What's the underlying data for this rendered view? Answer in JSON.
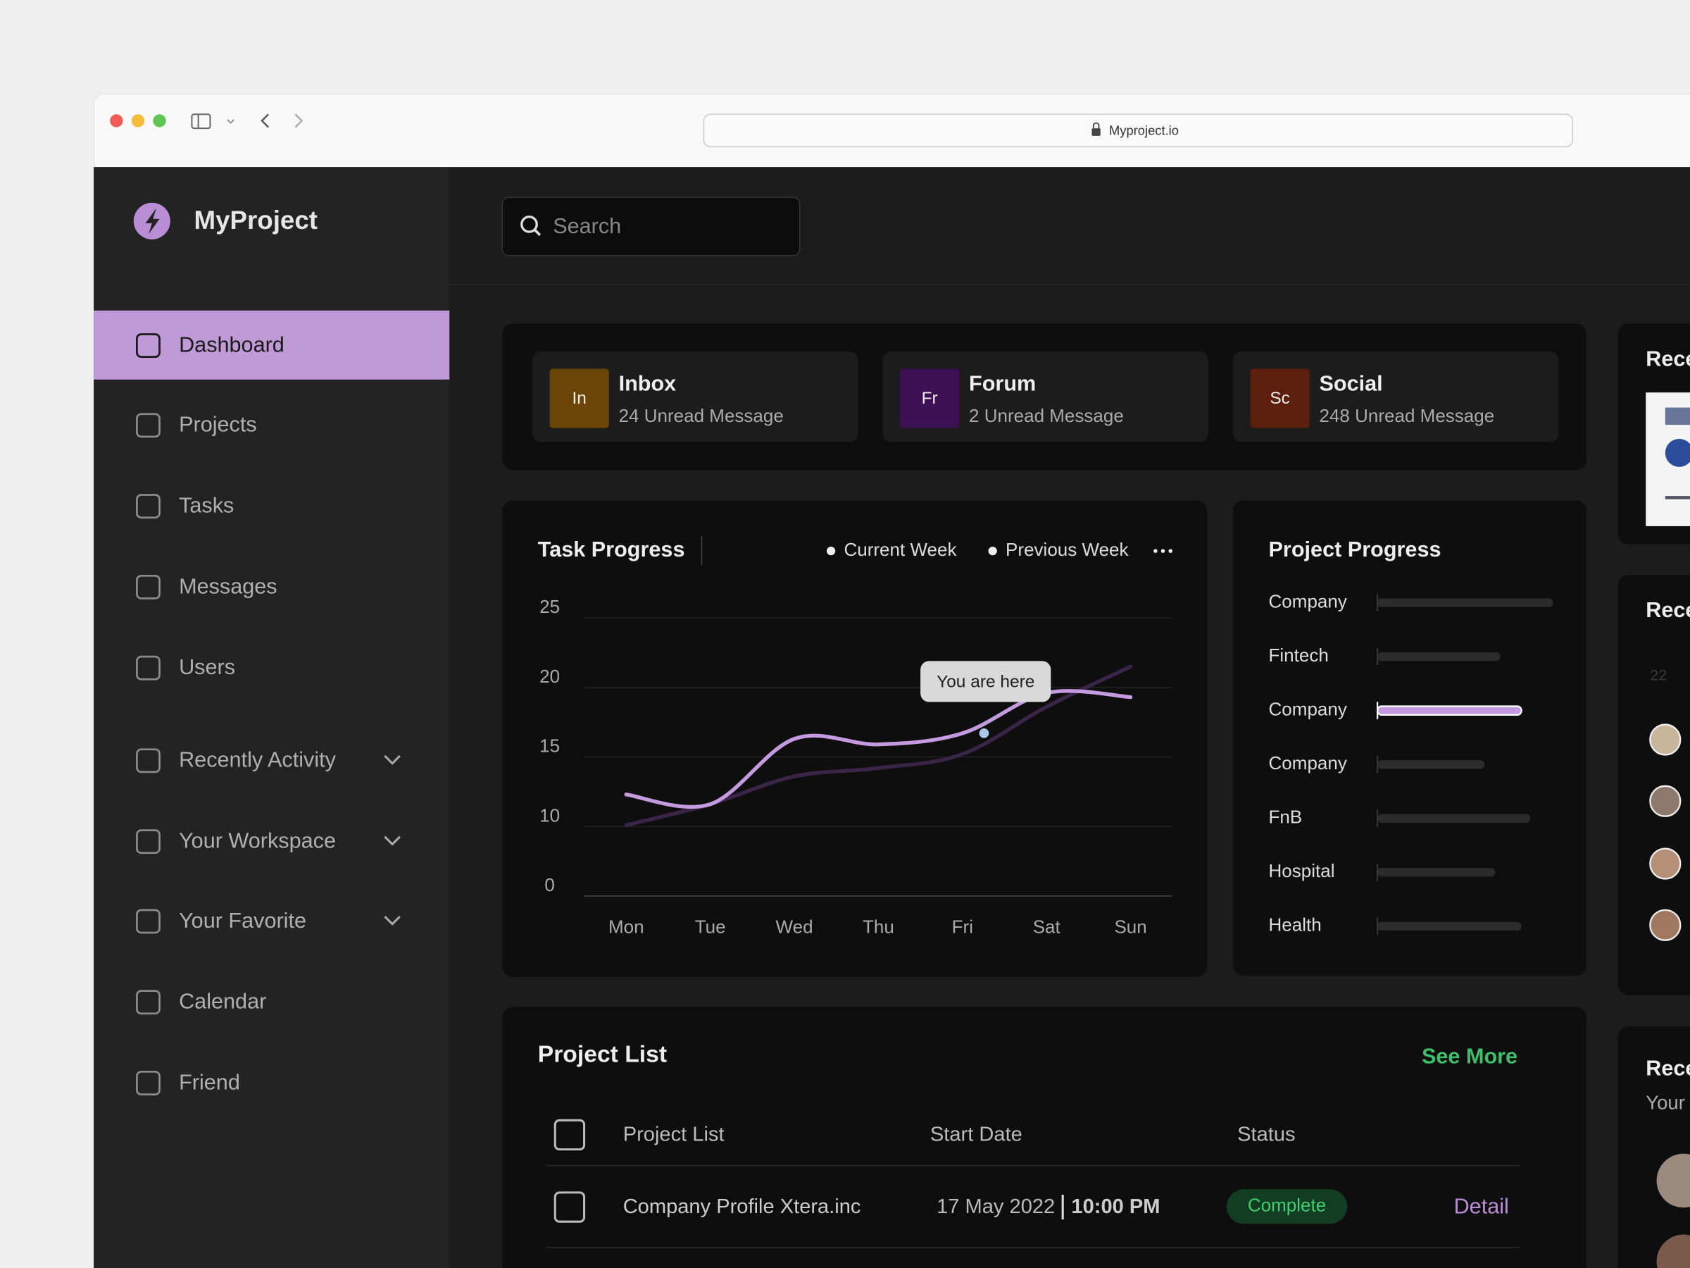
{
  "browser": {
    "url": "Myproject.io"
  },
  "sidebar": {
    "brand": "MyProject",
    "items": [
      {
        "label": "Dashboard",
        "active": true
      },
      {
        "label": "Projects"
      },
      {
        "label": "Tasks"
      },
      {
        "label": "Messages"
      },
      {
        "label": "Users"
      },
      {
        "label": "Recently Activity",
        "expandable": true
      },
      {
        "label": "Your Workspace",
        "expandable": true
      },
      {
        "label": "Your Favorite",
        "expandable": true
      },
      {
        "label": "Calendar"
      },
      {
        "label": "Friend"
      }
    ]
  },
  "search": {
    "placeholder": "Search"
  },
  "message_cards": [
    {
      "badge": "In",
      "title": "Inbox",
      "subtitle": "24 Unread Message",
      "color": "#6b4507"
    },
    {
      "badge": "Fr",
      "title": "Forum",
      "subtitle": "2 Unread Message",
      "color": "#3d0f55"
    },
    {
      "badge": "Sc",
      "title": "Social",
      "subtitle": "248 Unread Message",
      "color": "#5c1f0d"
    }
  ],
  "chart_data": [
    {
      "type": "line",
      "title": "Task Progress",
      "categories": [
        "Mon",
        "Tue",
        "Wed",
        "Thu",
        "Fri",
        "Sat",
        "Sun"
      ],
      "series": [
        {
          "name": "Current Week",
          "color": "#c59be0",
          "values": [
            12.3,
            11.6,
            16.3,
            15.9,
            16.7,
            19.6,
            19.3
          ]
        },
        {
          "name": "Previous Week",
          "color": "#3a2448",
          "values": [
            10.1,
            11.6,
            13.6,
            14.2,
            15.2,
            18.6,
            21.5
          ]
        }
      ],
      "ylim": [
        0,
        25
      ],
      "yticks": [
        0,
        10,
        15,
        20,
        25
      ],
      "grid": true,
      "annotation": "You are here"
    },
    {
      "type": "bar",
      "orientation": "horizontal",
      "title": "Project Progress",
      "categories": [
        "Company",
        "Fintech",
        "Company",
        "Company",
        "FnB",
        "Hospital",
        "Health"
      ],
      "values": [
        100,
        70,
        82,
        61,
        87,
        67,
        82
      ],
      "colors": [
        "#2c2c2c",
        "#2c2c2c",
        "#c59be0",
        "#2c2c2c",
        "#2c2c2c",
        "#2c2c2c",
        "#2c2c2c"
      ],
      "xlim": [
        0,
        100
      ]
    }
  ],
  "project_list": {
    "title": "Project List",
    "action": "See More",
    "columns": [
      "Project List",
      "Start Date",
      "Status"
    ],
    "rows": [
      {
        "name": "Company Profile Xtera.inc",
        "date": "17 May 2022",
        "time": "10:00 PM",
        "status": "Complete",
        "action": "Detail"
      }
    ]
  },
  "right_panels": [
    {
      "title": "Rece"
    },
    {
      "title": "Rece",
      "date": "22"
    },
    {
      "title": "Rece",
      "subtitle": "Your"
    }
  ]
}
